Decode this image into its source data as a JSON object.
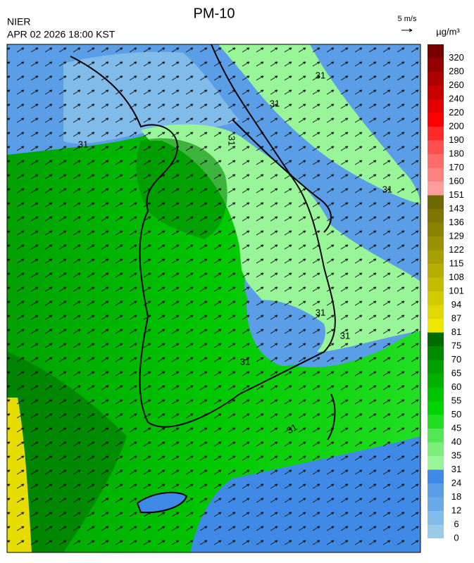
{
  "header": {
    "title": "PM-10",
    "agency": "NIER",
    "datetime": "APR 02 2026 18:00 KST",
    "wind_scale": "5 m/s"
  },
  "colorbar": {
    "unit": "µg/m³",
    "levels": [
      0,
      6,
      12,
      18,
      24,
      31,
      35,
      40,
      45,
      50,
      55,
      60,
      65,
      70,
      75,
      81,
      87,
      94,
      101,
      108,
      115,
      122,
      129,
      136,
      143,
      151,
      160,
      170,
      180,
      190,
      200,
      220,
      240,
      260,
      280,
      320
    ],
    "colors": [
      "#9ccbe8",
      "#80bbea",
      "#6aaaea",
      "#5a9ee8",
      "#3f8ae6",
      "#98f598",
      "#7cee7c",
      "#55e655",
      "#22df22",
      "#00d400",
      "#00c400",
      "#00b200",
      "#00a000",
      "#008a00",
      "#006c00",
      "#f0e600",
      "#e0d800",
      "#d2ca00",
      "#c4bc00",
      "#b6ae00",
      "#a8a000",
      "#9a9200",
      "#8c8400",
      "#7e7600",
      "#6e6800",
      "#ff9c9c",
      "#ff8282",
      "#ff6a6a",
      "#ff5050",
      "#ff2a2a",
      "#ff0000",
      "#e40000",
      "#c80000",
      "#ae0000",
      "#940000",
      "#780000"
    ]
  },
  "contour_labels": [
    "31",
    "31",
    "31",
    "31",
    "31",
    "31",
    "31",
    "31",
    "31"
  ]
}
